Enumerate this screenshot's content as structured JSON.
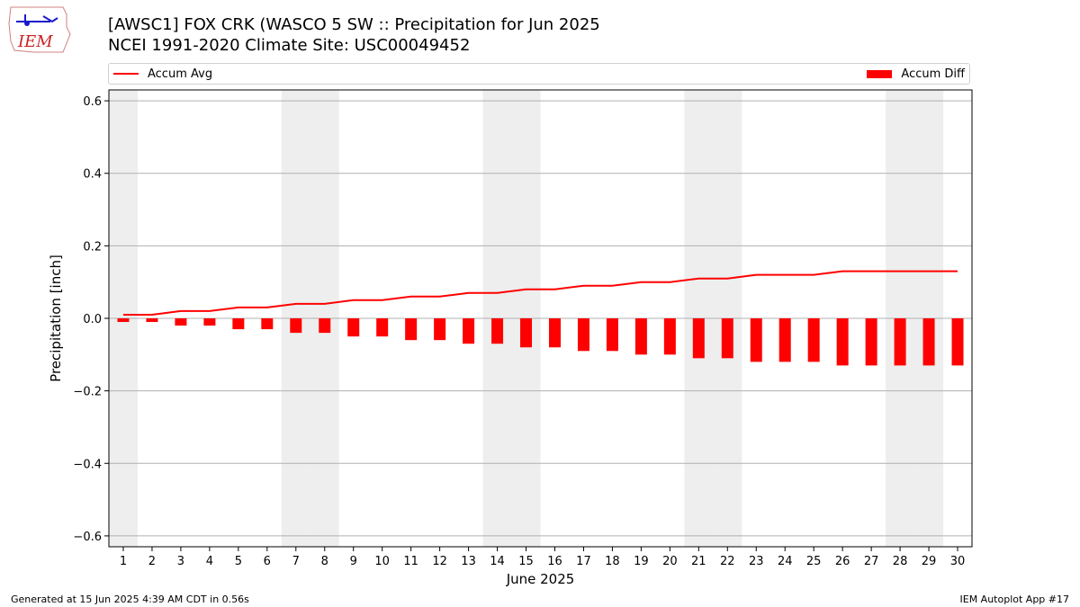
{
  "title_line1": "[AWSC1] FOX CRK (WASCO 5 SW :: Precipitation for Jun 2025",
  "title_line2": "NCEI 1991-2020 Climate Site: USC00049452",
  "logo_text": "IEM",
  "footer_left": "Generated at 15 Jun 2025 4:39 AM CDT in 0.56s",
  "footer_right": "IEM Autoplot App #17",
  "colors": {
    "series": "#ff0000",
    "weekend_band": "#eeeeee",
    "grid": "#b0b0b0"
  },
  "chart_data": {
    "type": "bar",
    "xlabel": "June 2025",
    "ylabel": "Precipitation [inch]",
    "ylim": [
      -0.63,
      0.63
    ],
    "yticks": [
      0.6,
      0.4,
      0.2,
      0.0,
      -0.2,
      -0.4,
      -0.6
    ],
    "ytick_labels": [
      "0.6",
      "0.4",
      "0.2",
      "0.0",
      "−0.2",
      "−0.4",
      "−0.6"
    ],
    "grid": "horizontal",
    "legend_placement": "top, outside axes",
    "days": [
      1,
      2,
      3,
      4,
      5,
      6,
      7,
      8,
      9,
      10,
      11,
      12,
      13,
      14,
      15,
      16,
      17,
      18,
      19,
      20,
      21,
      22,
      23,
      24,
      25,
      26,
      27,
      28,
      29,
      30
    ],
    "weekend_days": [
      1,
      7,
      8,
      14,
      15,
      21,
      22,
      28,
      29
    ],
    "series": [
      {
        "name": "Accum Avg",
        "kind": "line",
        "values": [
          0.01,
          0.01,
          0.02,
          0.02,
          0.03,
          0.03,
          0.04,
          0.04,
          0.05,
          0.05,
          0.06,
          0.06,
          0.07,
          0.07,
          0.08,
          0.08,
          0.09,
          0.09,
          0.1,
          0.1,
          0.11,
          0.11,
          0.12,
          0.12,
          0.12,
          0.13,
          0.13,
          0.13,
          0.13,
          0.13
        ]
      },
      {
        "name": "Accum Diff",
        "kind": "bar",
        "values": [
          -0.01,
          -0.01,
          -0.02,
          -0.02,
          -0.03,
          -0.03,
          -0.04,
          -0.04,
          -0.05,
          -0.05,
          -0.06,
          -0.06,
          -0.07,
          -0.07,
          -0.08,
          -0.08,
          -0.09,
          -0.09,
          -0.1,
          -0.1,
          -0.11,
          -0.11,
          -0.12,
          -0.12,
          -0.12,
          -0.13,
          -0.13,
          -0.13,
          -0.13,
          -0.13
        ]
      }
    ]
  }
}
